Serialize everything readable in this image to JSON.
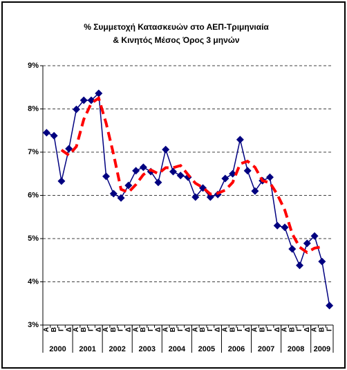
{
  "chart_data": {
    "type": "line",
    "title": [
      "% Συμμετοχή Κατασκευών στο ΑΕΠ-Τριμηνιαία",
      "& Κινητός Μέσος Όρος 3 μηνών"
    ],
    "categories": [
      "Α",
      "Β",
      "Γ",
      "Δ",
      "Α",
      "Β",
      "Γ",
      "Δ",
      "Α",
      "Β",
      "Γ",
      "Δ",
      "Α",
      "Β",
      "Γ",
      "Δ",
      "Α",
      "Β",
      "Γ",
      "Δ",
      "Α",
      "Β",
      "Γ",
      "Δ",
      "Α",
      "Β",
      "Γ",
      "Δ",
      "Α",
      "Β",
      "Γ",
      "Δ",
      "Α",
      "Β",
      "Γ",
      "Δ",
      "Α",
      "Β",
      "Γ"
    ],
    "years": [
      "2000",
      "2001",
      "2002",
      "2003",
      "2004",
      "2005",
      "2006",
      "2007",
      "2008",
      "2009"
    ],
    "series": [
      {
        "color": "#000080",
        "marker": "diamond",
        "values": [
          7.45,
          7.38,
          6.33,
          7.08,
          7.99,
          8.2,
          8.2,
          8.36,
          6.44,
          6.04,
          5.94,
          6.23,
          6.57,
          6.65,
          6.55,
          6.3,
          7.06,
          6.55,
          6.46,
          6.42,
          5.96,
          6.17,
          5.96,
          6.02,
          6.39,
          6.5,
          7.29,
          6.57,
          6.1,
          6.34,
          6.42,
          5.3,
          5.26,
          4.76,
          4.38,
          4.89,
          5.06,
          4.47,
          3.45
        ]
      },
      {
        "color": "#ff0000",
        "dashed": true,
        "values": [
          null,
          null,
          7.05,
          6.93,
          7.13,
          7.76,
          8.13,
          8.25,
          7.67,
          6.95,
          6.14,
          6.07,
          6.25,
          6.48,
          6.59,
          6.5,
          6.64,
          6.64,
          6.69,
          6.48,
          6.28,
          6.18,
          6.03,
          6.05,
          6.12,
          6.3,
          6.73,
          6.79,
          6.65,
          6.34,
          6.29,
          6.02,
          5.66,
          5.11,
          4.8,
          4.68,
          4.78,
          4.81,
          null
        ]
      }
    ],
    "ylim": [
      3,
      9
    ],
    "yticks": [
      {
        "value": 3,
        "label": "3%"
      },
      {
        "value": 4,
        "label": "4%"
      },
      {
        "value": 5,
        "label": "5%"
      },
      {
        "value": 6,
        "label": "6%"
      },
      {
        "value": 7,
        "label": "7%"
      },
      {
        "value": 8,
        "label": "8%"
      },
      {
        "value": 9,
        "label": "9%"
      }
    ],
    "grid": true
  }
}
